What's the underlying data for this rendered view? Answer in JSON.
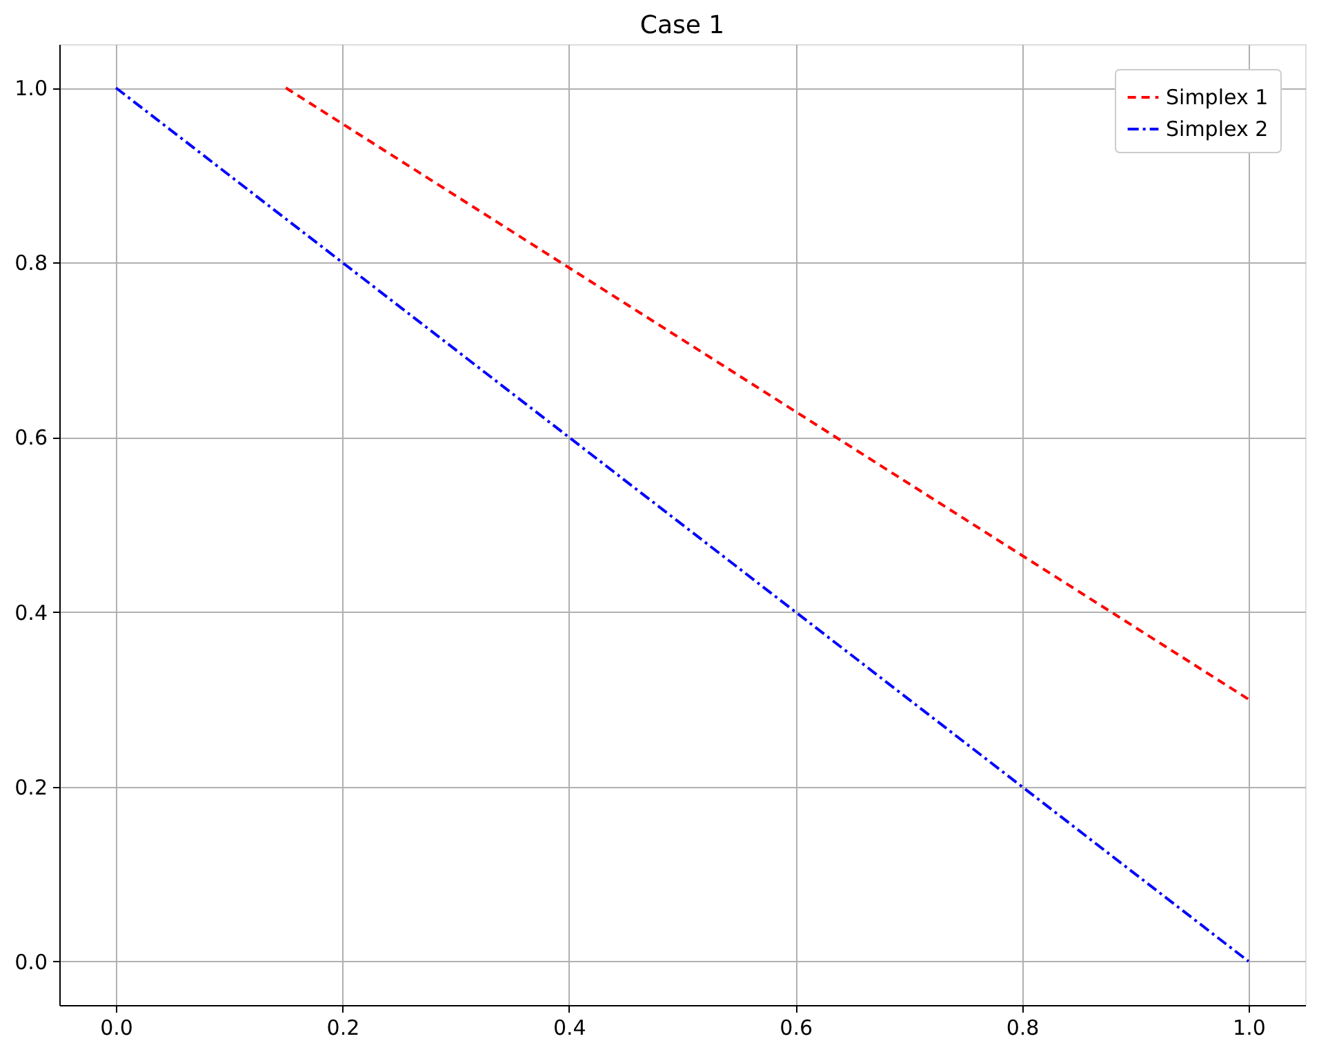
{
  "chart_data": {
    "type": "line",
    "title": "Case 1",
    "series": [
      {
        "name": "Simplex 1",
        "color": "#ff0000",
        "line_style": "dashed",
        "x": [
          0.15,
          1.0
        ],
        "values": [
          1.0,
          0.3
        ]
      },
      {
        "name": "Simplex 2",
        "color": "#0000ff",
        "line_style": "dashdot",
        "x": [
          0.0,
          1.0
        ],
        "values": [
          1.0,
          0.0
        ]
      }
    ],
    "xlim": [
      -0.05,
      1.05
    ],
    "ylim": [
      -0.05,
      1.05
    ],
    "xticks": [
      {
        "value": 0,
        "label": "0.0"
      },
      {
        "value": 0.2,
        "label": "0.2"
      },
      {
        "value": 0.4,
        "label": "0.4"
      },
      {
        "value": 0.6,
        "label": "0.6"
      },
      {
        "value": 0.8,
        "label": "0.8"
      },
      {
        "value": 1,
        "label": "1.0"
      }
    ],
    "yticks": [
      {
        "value": 0,
        "label": "0.0"
      },
      {
        "value": 0.2,
        "label": "0.2"
      },
      {
        "value": 0.4,
        "label": "0.4"
      },
      {
        "value": 0.6,
        "label": "0.6"
      },
      {
        "value": 0.8,
        "label": "0.8"
      },
      {
        "value": 1,
        "label": "1.0"
      }
    ],
    "grid": true,
    "legend": "top right",
    "marker": "none"
  }
}
